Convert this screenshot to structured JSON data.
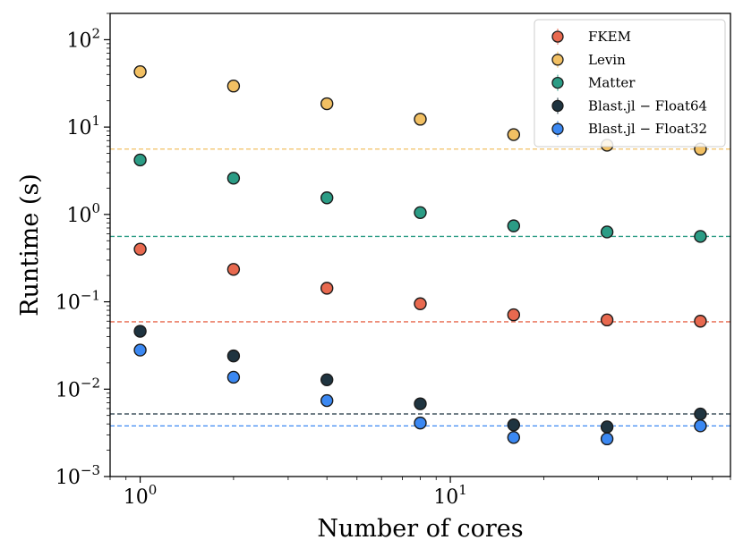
{
  "chart_data": {
    "type": "scatter",
    "title": "",
    "xlabel": "Number of cores",
    "ylabel": "Runtime (s)",
    "xscale": "log",
    "yscale": "log",
    "xlim": [
      0.8,
      80
    ],
    "ylim": [
      0.001,
      200
    ],
    "x_ticks": [
      {
        "value": 1,
        "base": "10",
        "exp": "0"
      },
      {
        "value": 10,
        "base": "10",
        "exp": "1"
      }
    ],
    "y_ticks": [
      {
        "value": 0.001,
        "base": "10",
        "exp": "−3"
      },
      {
        "value": 0.01,
        "base": "10",
        "exp": "−2"
      },
      {
        "value": 0.1,
        "base": "10",
        "exp": "−1"
      },
      {
        "value": 1,
        "base": "10",
        "exp": "0"
      },
      {
        "value": 10,
        "base": "10",
        "exp": "1"
      },
      {
        "value": 100,
        "base": "10",
        "exp": "2"
      }
    ],
    "grid": false,
    "legend_position": "top-right",
    "series": [
      {
        "name": "FKEM",
        "color": "#e8694f",
        "x": [
          1,
          2,
          4,
          8,
          16,
          32,
          64
        ],
        "y": [
          0.4,
          0.235,
          0.143,
          0.095,
          0.071,
          0.062,
          0.06
        ],
        "reference_line": 0.059
      },
      {
        "name": "Levin",
        "color": "#f2c063",
        "x": [
          1,
          2,
          4,
          8,
          16,
          32,
          64
        ],
        "y": [
          43,
          29.5,
          18.5,
          12.3,
          8.2,
          6.2,
          5.6
        ],
        "reference_line": 5.6
      },
      {
        "name": "Matter",
        "color": "#2b9c85",
        "x": [
          1,
          2,
          4,
          8,
          16,
          32,
          64
        ],
        "y": [
          4.2,
          2.6,
          1.55,
          1.05,
          0.74,
          0.63,
          0.56
        ],
        "reference_line": 0.56
      },
      {
        "name": "Blast.jl − Float64",
        "color": "#1f3440",
        "x": [
          1,
          2,
          4,
          8,
          16,
          32,
          64
        ],
        "y": [
          0.046,
          0.024,
          0.0128,
          0.0068,
          0.0039,
          0.0037,
          0.0052
        ],
        "reference_line": 0.0052
      },
      {
        "name": "Blast.jl − Float32",
        "color": "#3b88f2",
        "x": [
          1,
          2,
          4,
          8,
          16,
          32,
          64
        ],
        "y": [
          0.028,
          0.0137,
          0.0074,
          0.0041,
          0.0028,
          0.0027,
          0.0038
        ],
        "reference_line": 0.0038
      }
    ]
  }
}
